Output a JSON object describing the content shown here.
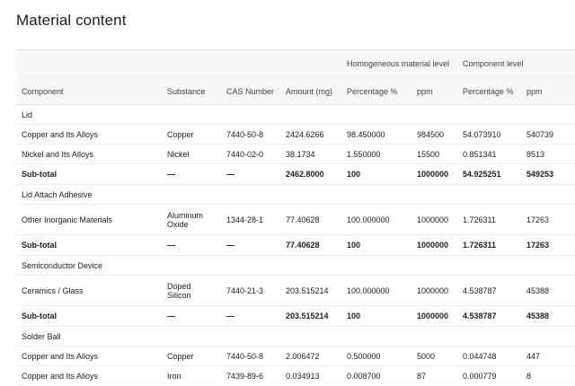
{
  "title": "Material content",
  "group_headers": {
    "homogeneous": "Homogeneous material level",
    "component_level": "Component level"
  },
  "columns": [
    "Component",
    "Substance",
    "CAS Number",
    "Amount (mg)",
    "Percentage %",
    "ppm",
    "Percentage %",
    "ppm"
  ],
  "sections": [
    {
      "name": "Lid",
      "rows": [
        {
          "component": "Copper and Its Alloys",
          "substance": "Copper",
          "cas": "7440-50-8",
          "amount": "2424.6266",
          "hom_pct": "98.450000",
          "hom_ppm": "984500",
          "comp_pct": "54.073910",
          "comp_ppm": "540739"
        },
        {
          "component": "Nickel and Its Alloys",
          "substance": "Nickel",
          "cas": "7440-02-0",
          "amount": "38.1734",
          "hom_pct": "1.550000",
          "hom_ppm": "15500",
          "comp_pct": "0.851341",
          "comp_ppm": "8513"
        }
      ],
      "subtotal": {
        "label": "Sub-total",
        "substance": "—",
        "cas": "—",
        "amount": "2462.8000",
        "hom_pct": "100",
        "hom_ppm": "1000000",
        "comp_pct": "54.925251",
        "comp_ppm": "549253"
      }
    },
    {
      "name": "Lid Attach Adhesive",
      "rows": [
        {
          "component": "Other Inorganic Materials",
          "substance": "Aluminum Oxide",
          "cas": "1344-28-1",
          "amount": "77.40628",
          "hom_pct": "100.000000",
          "hom_ppm": "1000000",
          "comp_pct": "1.726311",
          "comp_ppm": "17263"
        }
      ],
      "subtotal": {
        "label": "Sub-total",
        "substance": "—",
        "cas": "—",
        "amount": "77.40628",
        "hom_pct": "100",
        "hom_ppm": "1000000",
        "comp_pct": "1.726311",
        "comp_ppm": "17263"
      }
    },
    {
      "name": "Semiconductor Device",
      "rows": [
        {
          "component": "Ceramics / Glass",
          "substance": "Doped Silicon",
          "cas": "7440-21-3",
          "amount": "203.515214",
          "hom_pct": "100.000000",
          "hom_ppm": "1000000",
          "comp_pct": "4.538787",
          "comp_ppm": "45388"
        }
      ],
      "subtotal": {
        "label": "Sub-total",
        "substance": "—",
        "cas": "—",
        "amount": "203.515214",
        "hom_pct": "100",
        "hom_ppm": "1000000",
        "comp_pct": "4.538787",
        "comp_ppm": "45388"
      }
    },
    {
      "name": "Solder Ball",
      "rows": [
        {
          "component": "Copper and Its Alloys",
          "substance": "Copper",
          "cas": "7440-50-8",
          "amount": "2.006472",
          "hom_pct": "0.500000",
          "hom_ppm": "5000",
          "comp_pct": "0.044748",
          "comp_ppm": "447"
        },
        {
          "component": "Copper and Its Alloys",
          "substance": "Iron",
          "cas": "7439-89-6",
          "amount": "0.034913",
          "hom_pct": "0.008700",
          "hom_ppm": "87",
          "comp_pct": "0.000779",
          "comp_ppm": "8"
        }
      ]
    }
  ]
}
